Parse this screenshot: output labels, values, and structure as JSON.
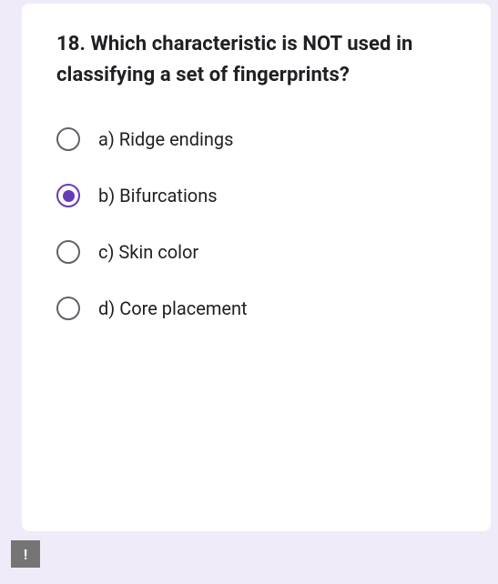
{
  "question": {
    "title": "18. Which characteristic is NOT used in classifying a set of fingerprints?",
    "options": [
      {
        "label": "a) Ridge endings",
        "selected": false
      },
      {
        "label": "b) Bifurcations",
        "selected": true
      },
      {
        "label": "c) Skin color",
        "selected": false
      },
      {
        "label": "d) Core placement",
        "selected": false
      }
    ]
  },
  "colors": {
    "background": "#f0ebf8",
    "card": "#ffffff",
    "text": "#202124",
    "radio_unselected": "#5f6368",
    "radio_selected": "#673ab7",
    "feedback_bg": "#757575"
  },
  "feedback_icon": "!"
}
